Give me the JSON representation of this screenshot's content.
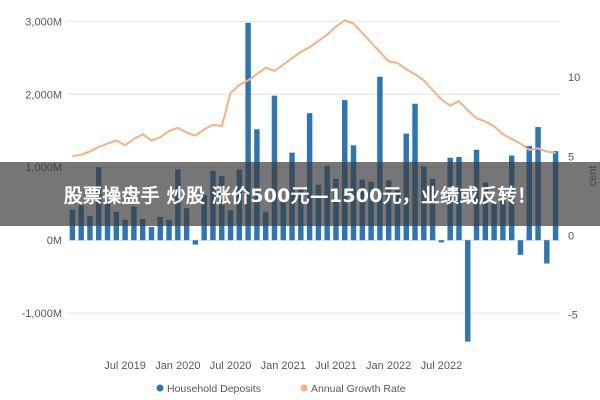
{
  "banner": {
    "text": "股票操盘手 炒股 涨价500元—1500元，业绩或反转！"
  },
  "chart_data": {
    "type": "bar",
    "left_axis": {
      "ticks": [
        -1000,
        0,
        1000,
        2000,
        3000
      ],
      "tick_labels": [
        "-1,000M",
        "0M",
        "1,000M",
        "2,000M",
        "3,000M"
      ],
      "ylim": [
        -1450,
        3100
      ]
    },
    "right_axis": {
      "ticks": [
        -5,
        0,
        5,
        10
      ],
      "tick_labels": [
        "-5",
        "0",
        "5",
        "10"
      ],
      "ylim": [
        -7.0,
        14.0
      ],
      "label_fragment": "cent"
    },
    "x_axis": {
      "tick_labels": [
        "Jul 2019",
        "Jan 2020",
        "Jul 2020",
        "Jan 2021",
        "Jul 2021",
        "Jan 2022",
        "Jul 2022"
      ],
      "tick_months": [
        6,
        12,
        18,
        24,
        30,
        36,
        42
      ]
    },
    "series": [
      {
        "name": "Household Deposits",
        "type": "bar",
        "color": "#2e75b6",
        "axis": "left",
        "values": [
          420,
          480,
          330,
          1000,
          510,
          390,
          280,
          460,
          290,
          180,
          320,
          280,
          970,
          440,
          -60,
          620,
          950,
          880,
          410,
          970,
          2980,
          1520,
          390,
          1980,
          540,
          1200,
          730,
          1740,
          760,
          1020,
          840,
          1920,
          1300,
          830,
          800,
          2240,
          820,
          690,
          1460,
          1870,
          1010,
          840,
          -30,
          1130,
          1140,
          -1390,
          1240,
          790,
          520,
          580,
          1160,
          -200,
          1290,
          1550,
          -320,
          1220
        ]
      },
      {
        "name": "Annual Growth Rate",
        "type": "line",
        "color": "#f4b183",
        "axis": "right",
        "values": [
          5.0,
          5.1,
          5.3,
          5.6,
          5.8,
          6.0,
          5.7,
          6.1,
          6.4,
          6.0,
          6.2,
          6.6,
          6.8,
          6.5,
          6.3,
          6.7,
          7.0,
          6.9,
          9.0,
          9.5,
          9.8,
          10.2,
          10.6,
          10.4,
          10.8,
          11.2,
          11.6,
          11.9,
          12.3,
          12.7,
          13.2,
          13.6,
          13.4,
          12.8,
          12.2,
          11.6,
          11.0,
          10.9,
          10.5,
          10.2,
          9.8,
          9.2,
          8.6,
          8.2,
          8.5,
          7.9,
          7.4,
          7.2,
          6.9,
          6.4,
          6.1,
          5.8,
          5.4,
          5.5,
          5.3,
          5.2
        ]
      }
    ],
    "legend": {
      "position": "bottom",
      "items": [
        "Household Deposits",
        "Annual Growth Rate"
      ]
    }
  }
}
